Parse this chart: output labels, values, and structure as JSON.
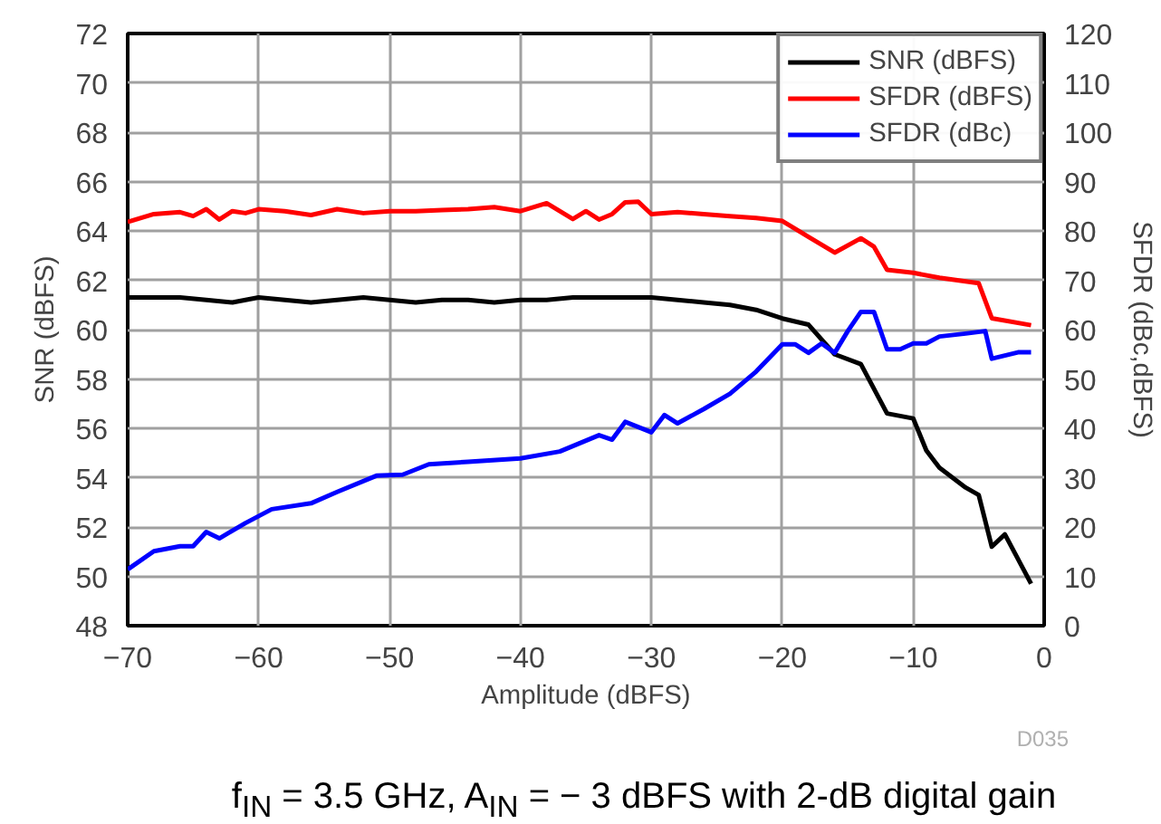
{
  "chart_data": {
    "type": "line",
    "xlabel": "Amplitude (dBFS)",
    "ylabel": "SNR (dBFS)",
    "y2label": "SFDR (dBc,dBFS)",
    "xlim": [
      -70,
      0
    ],
    "xticks": [
      -70,
      -60,
      -50,
      -40,
      -30,
      -20,
      -10,
      0
    ],
    "ylim": [
      48,
      72
    ],
    "yticks": [
      48,
      50,
      52,
      54,
      56,
      58,
      60,
      62,
      64,
      66,
      68,
      70,
      72
    ],
    "y2lim": [
      0,
      120
    ],
    "y2ticks": [
      0,
      10,
      20,
      30,
      40,
      50,
      60,
      70,
      80,
      90,
      100,
      110,
      120
    ],
    "grid": true,
    "legend": "top right",
    "marker": "none",
    "line_style": "solid",
    "series": [
      {
        "name": "SNR (dBFS)",
        "color": "#000000",
        "x": [
          -70,
          -66,
          -64,
          -62,
          -60,
          -58,
          -56,
          -54,
          -52,
          -50,
          -48,
          -46,
          -44,
          -42,
          -40,
          -38,
          -36,
          -34,
          -32,
          -30,
          -28,
          -26,
          -24,
          -22,
          -20,
          -18,
          -16,
          -14,
          -12,
          -10,
          -9,
          -8,
          -6,
          -5,
          -4,
          -3,
          -1
        ],
        "values": [
          61.3,
          61.3,
          61.2,
          61.1,
          61.3,
          61.2,
          61.1,
          61.2,
          61.3,
          61.2,
          61.1,
          61.2,
          61.2,
          61.1,
          61.2,
          61.2,
          61.3,
          61.3,
          61.3,
          61.3,
          61.2,
          61.1,
          61.0,
          60.8,
          60.45,
          60.2,
          59.0,
          58.6,
          56.6,
          56.4,
          55.1,
          54.4,
          53.6,
          53.3,
          51.2,
          51.7,
          49.7
        ]
      },
      {
        "name": "SFDR (dBFS)",
        "color": "#ff0000",
        "axis": "y2",
        "x": [
          -70,
          -68,
          -66,
          -65,
          -64,
          -63,
          -62,
          -61,
          -60,
          -58,
          -56,
          -54,
          -52,
          -50,
          -48,
          -46,
          -44,
          -42,
          -40,
          -38,
          -36,
          -35,
          -34,
          -33,
          -32,
          -31,
          -30,
          -28,
          -26,
          -24,
          -22,
          -20,
          -18,
          -16,
          -14,
          -13,
          -12,
          -10,
          -8,
          -5,
          -4,
          -1
        ],
        "values": [
          81.8,
          83.4,
          83.8,
          83.0,
          84.4,
          82.3,
          84.0,
          83.6,
          84.4,
          84.0,
          83.2,
          84.4,
          83.6,
          84.0,
          84.0,
          84.2,
          84.4,
          84.8,
          84.0,
          85.6,
          82.4,
          84.0,
          82.3,
          83.4,
          85.8,
          85.9,
          83.4,
          83.8,
          83.4,
          83.0,
          82.6,
          82.0,
          78.8,
          75.6,
          78.5,
          76.8,
          72.1,
          71.5,
          70.5,
          69.4,
          62.3,
          60.9
        ]
      },
      {
        "name": "SFDR (dBc)",
        "color": "#0000ff",
        "axis": "y2",
        "x": [
          -70,
          -68,
          -66,
          -65,
          -64,
          -63,
          -61,
          -59,
          -56,
          -54,
          -51,
          -49,
          -47,
          -44,
          -40,
          -37,
          -34,
          -33,
          -32,
          -30,
          -29,
          -28,
          -26,
          -24,
          -22,
          -20,
          -19,
          -18,
          -17,
          -16,
          -15,
          -14,
          -13,
          -12,
          -11,
          -10,
          -9,
          -8,
          -6,
          -4.5,
          -4,
          -2,
          -1
        ],
        "values": [
          11.4,
          15.1,
          16.1,
          16.1,
          19.0,
          17.7,
          20.8,
          23.6,
          24.8,
          27.1,
          30.4,
          30.6,
          32.7,
          33.2,
          33.9,
          35.3,
          38.6,
          37.7,
          41.3,
          39.2,
          42.7,
          41.0,
          43.9,
          47.0,
          51.5,
          57.0,
          57.0,
          55.3,
          57.2,
          55.3,
          59.7,
          63.6,
          63.6,
          56.0,
          56.0,
          57.2,
          57.2,
          58.6,
          59.2,
          59.7,
          54.1,
          55.4,
          55.4
        ]
      }
    ],
    "annotations": [
      "D035",
      "f$_{IN}$ = 3.5 GHz, A$_{IN}$ = − 3 dBFS with 2-dB digital gain"
    ]
  }
}
